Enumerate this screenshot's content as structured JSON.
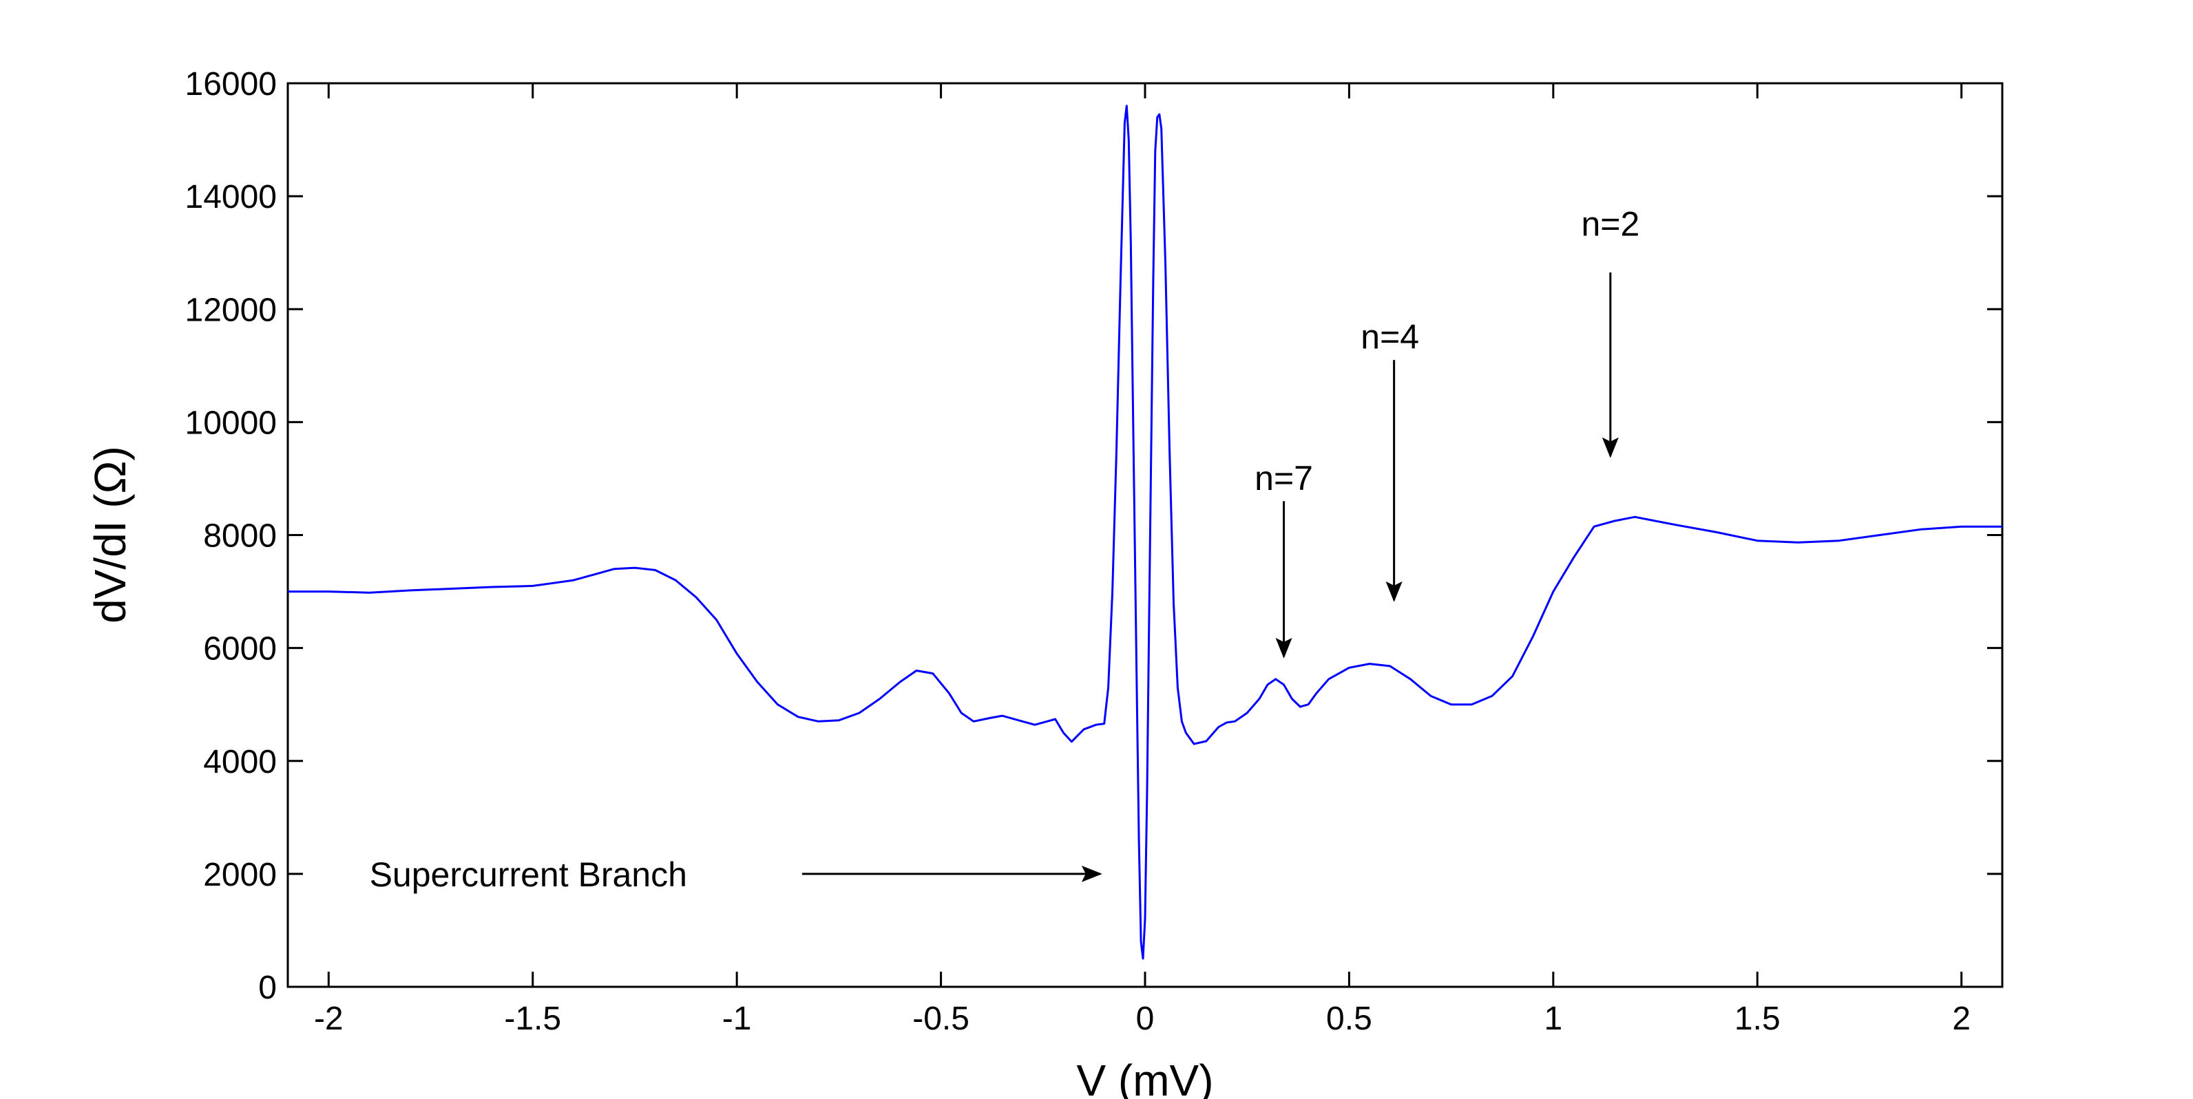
{
  "chart_data": {
    "type": "line",
    "title": "",
    "xlabel": "V (mV)",
    "ylabel": "dV/dI (Ω)",
    "xlim": [
      -2.1,
      2.1
    ],
    "ylim": [
      0,
      16000
    ],
    "xticks": [
      -2,
      -1.5,
      -1,
      -0.5,
      0,
      0.5,
      1,
      1.5,
      2
    ],
    "xtick_labels": [
      "-2",
      "-1.5",
      "-1",
      "-0.5",
      "0",
      "0.5",
      "1",
      "1.5",
      "2"
    ],
    "yticks": [
      0,
      2000,
      4000,
      6000,
      8000,
      10000,
      12000,
      14000,
      16000
    ],
    "ytick_labels": [
      "0",
      "2000",
      "4000",
      "6000",
      "8000",
      "10000",
      "12000",
      "14000",
      "16000"
    ],
    "grid": false,
    "line_color": "#0000ff",
    "series": [
      {
        "x": [
          -2.1,
          -2.0,
          -1.9,
          -1.8,
          -1.7,
          -1.6,
          -1.5,
          -1.45,
          -1.4,
          -1.35,
          -1.3,
          -1.25,
          -1.2,
          -1.15,
          -1.1,
          -1.05,
          -1.0,
          -0.95,
          -0.9,
          -0.85,
          -0.8,
          -0.75,
          -0.7,
          -0.65,
          -0.6,
          -0.56,
          -0.52,
          -0.48,
          -0.45,
          -0.42,
          -0.38,
          -0.35,
          -0.3,
          -0.27,
          -0.24,
          -0.22,
          -0.2,
          -0.18,
          -0.15,
          -0.12,
          -0.1,
          -0.09,
          -0.08,
          -0.07,
          -0.06,
          -0.05,
          -0.045,
          -0.04,
          -0.035,
          -0.03,
          -0.025,
          -0.02,
          -0.015,
          -0.01,
          -0.005,
          0.0,
          0.005,
          0.01,
          0.015,
          0.02,
          0.025,
          0.03,
          0.035,
          0.04,
          0.05,
          0.06,
          0.07,
          0.08,
          0.09,
          0.1,
          0.12,
          0.15,
          0.18,
          0.2,
          0.22,
          0.25,
          0.28,
          0.3,
          0.32,
          0.34,
          0.36,
          0.38,
          0.4,
          0.42,
          0.45,
          0.5,
          0.55,
          0.6,
          0.65,
          0.7,
          0.75,
          0.8,
          0.85,
          0.9,
          0.95,
          1.0,
          1.05,
          1.1,
          1.15,
          1.2,
          1.25,
          1.3,
          1.4,
          1.5,
          1.6,
          1.7,
          1.8,
          1.9,
          2.0,
          2.1
        ],
        "y": [
          7000,
          7000,
          6980,
          7020,
          7050,
          7080,
          7100,
          7150,
          7200,
          7300,
          7400,
          7420,
          7380,
          7200,
          6900,
          6500,
          5900,
          5400,
          5000,
          4780,
          4700,
          4720,
          4850,
          5100,
          5400,
          5600,
          5550,
          5200,
          4850,
          4700,
          4760,
          4800,
          4700,
          4640,
          4700,
          4740,
          4500,
          4340,
          4560,
          4640,
          4660,
          5300,
          7000,
          9500,
          12500,
          15300,
          15600,
          15000,
          13200,
          10500,
          7800,
          5200,
          2600,
          800,
          500,
          1200,
          3500,
          6500,
          9500,
          12500,
          14800,
          15400,
          15450,
          15200,
          12800,
          9500,
          6800,
          5300,
          4700,
          4500,
          4300,
          4350,
          4600,
          4680,
          4700,
          4850,
          5100,
          5350,
          5450,
          5350,
          5100,
          4960,
          5000,
          5200,
          5450,
          5650,
          5720,
          5680,
          5450,
          5150,
          5000,
          5000,
          5150,
          5500,
          6200,
          7000,
          7600,
          8150,
          8250,
          8320,
          8250,
          8180,
          8050,
          7900,
          7870,
          7900,
          8000,
          8100,
          8150,
          8150
        ]
      }
    ],
    "annotations": [
      {
        "text": "Supercurrent Branch",
        "label_at": [
          -1.9,
          2000
        ],
        "arrow_from": [
          -0.84,
          2000
        ],
        "arrow_to": [
          -0.11,
          2000
        ]
      },
      {
        "text": "n=7",
        "label_at": [
          0.34,
          8800
        ],
        "arrow_from": [
          0.34,
          8600
        ],
        "arrow_to": [
          0.34,
          5850
        ]
      },
      {
        "text": "n=4",
        "label_at": [
          0.6,
          11300
        ],
        "arrow_from": [
          0.61,
          11100
        ],
        "arrow_to": [
          0.61,
          6850
        ]
      },
      {
        "text": "n=2",
        "label_at": [
          1.14,
          13300
        ],
        "arrow_from": [
          1.14,
          12650
        ],
        "arrow_to": [
          1.14,
          9400
        ]
      }
    ]
  }
}
